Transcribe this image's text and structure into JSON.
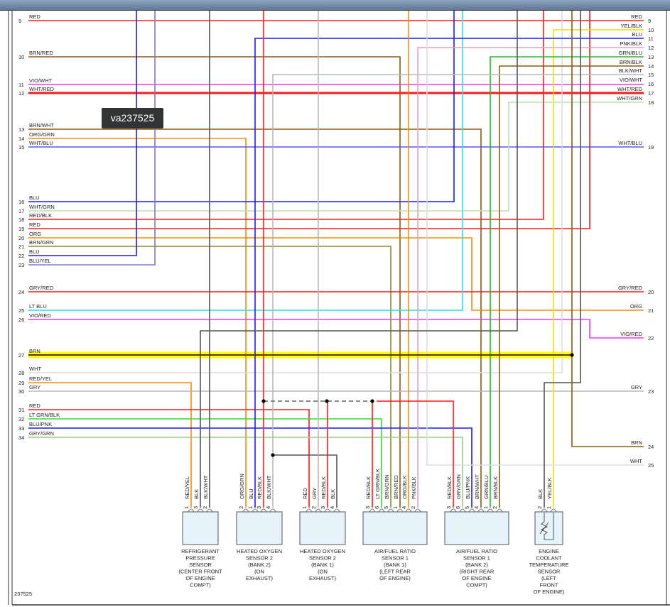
{
  "diagram_id": "237525",
  "tooltip": "va237525",
  "colors": {
    "RED": "#ff1a1a",
    "BLU": "#1a1aff",
    "BRN": "#8b5a10",
    "GRY": "#b8b8b8",
    "BLK": "#555555",
    "WHT": "#dddddd",
    "ORG": "#ff8a00",
    "VIO": "#ff33ff",
    "YEL": "#f0e000",
    "PNK": "#f0a0b0",
    "GRN": "#22bb22",
    "LTBLU": "#22e0ee",
    "LTGRN": "#33dd33",
    "GRYGRN": "#99cc88",
    "WHTGRN": "#bfe0b0",
    "WHTBLU": "#5555ff",
    "BLUYEL": "#7a7ad0",
    "BRNGRN": "#8a8a30",
    "highlight": "#ffff00"
  },
  "left_pins": [
    {
      "num": "9",
      "label": "RED"
    },
    {
      "num": "10",
      "label": "BRN/RED"
    },
    {
      "num": "11",
      "label": "VIO/WHT"
    },
    {
      "num": "12",
      "label": "WHT/RED"
    },
    {
      "num": "13",
      "label": "BRN/WHT"
    },
    {
      "num": "14",
      "label": "ORG/GRN"
    },
    {
      "num": "15",
      "label": "WHT/BLU"
    },
    {
      "num": "16",
      "label": "BLU"
    },
    {
      "num": "17",
      "label": "WHT/GRN"
    },
    {
      "num": "18",
      "label": "RED/BLK"
    },
    {
      "num": "19",
      "label": "RED"
    },
    {
      "num": "20",
      "label": "ORG"
    },
    {
      "num": "21",
      "label": "BRN/GRN"
    },
    {
      "num": "22",
      "label": "BLU"
    },
    {
      "num": "23",
      "label": "BLU/YEL"
    },
    {
      "num": "24",
      "label": "GRY/RED"
    },
    {
      "num": "25",
      "label": "LT BLU"
    },
    {
      "num": "26",
      "label": "VIO/RED"
    },
    {
      "num": "27",
      "label": "BRN"
    },
    {
      "num": "28",
      "label": "WHT"
    },
    {
      "num": "29",
      "label": "RED/YEL"
    },
    {
      "num": "30",
      "label": "GRY"
    },
    {
      "num": "31",
      "label": "RED"
    },
    {
      "num": "32",
      "label": "LT GRN/BLK"
    },
    {
      "num": "33",
      "label": "BLU/PNK"
    },
    {
      "num": "34",
      "label": "GRY/GRN"
    }
  ],
  "right_pins": [
    {
      "num": "9",
      "label": "RED"
    },
    {
      "num": "10",
      "label": "YEL/BLK"
    },
    {
      "num": "11",
      "label": "BLU"
    },
    {
      "num": "12",
      "label": "PNK/BLK"
    },
    {
      "num": "13",
      "label": "GRN/BLU"
    },
    {
      "num": "14",
      "label": "BRN/BLK"
    },
    {
      "num": "15",
      "label": "BLK/WHT"
    },
    {
      "num": "16",
      "label": "VIO/WHT"
    },
    {
      "num": "17",
      "label": "WHT/RED"
    },
    {
      "num": "18",
      "label": "WHT/GRN"
    },
    {
      "num": "19",
      "label": "WHT/BLU"
    },
    {
      "num": "20",
      "label": "GRY/RED"
    },
    {
      "num": "21",
      "label": "ORG"
    },
    {
      "num": "22",
      "label": "VIO/RED"
    },
    {
      "num": "23",
      "label": "GRY"
    },
    {
      "num": "24",
      "label": "BRN"
    },
    {
      "num": "25",
      "label": "WHT"
    }
  ],
  "components": [
    {
      "name": [
        "REFRIGERANT",
        "PRESSURE",
        "SENSOR",
        "(CENTER FRONT",
        "OF ENGINE",
        "COMPT)"
      ],
      "pins": [
        {
          "num": "1",
          "label": "RED/YEL"
        },
        {
          "num": "3",
          "label": "BLK"
        },
        {
          "num": "2",
          "label": "BLK/WHT"
        }
      ]
    },
    {
      "name": [
        "HEATED OXYGEN",
        "SENSOR 2",
        "(BANK 2)",
        "(ON",
        "EXHAUST)"
      ],
      "pins": [
        {
          "num": "2",
          "label": "ORG/GRN"
        },
        {
          "num": "1",
          "label": "BLU"
        },
        {
          "num": "3",
          "label": "RED/BLK"
        },
        {
          "num": "4",
          "label": "BLK/WHT"
        }
      ]
    },
    {
      "name": [
        "HEATED OXYGEN",
        "SENSOR 2",
        "(BANK 1)",
        "(ON",
        "EXHAUST)"
      ],
      "pins": [
        {
          "num": "1",
          "label": "RED"
        },
        {
          "num": "2",
          "label": "GRY"
        },
        {
          "num": "3",
          "label": "RED/BLK"
        },
        {
          "num": "4",
          "label": "BLK"
        }
      ]
    },
    {
      "name": [
        "AIR/FUEL RATIO",
        "SENSOR 1",
        "(BANK 1)",
        "(LEFT REAR",
        "OF ENGINE)"
      ],
      "pins": [
        {
          "num": "3",
          "label": "RED/BLK"
        },
        {
          "num": "6",
          "label": "LT GRN/BLK"
        },
        {
          "num": "5",
          "label": "BRN/GRN"
        },
        {
          "num": "1",
          "label": "BRN/RED"
        },
        {
          "num": "4",
          "label": "ORG/BLK"
        },
        {
          "num": "2",
          "label": "PNK/BLK"
        }
      ]
    },
    {
      "name": [
        "AIR/FUEL RATIO",
        "SENSOR 1",
        "(BANK 2)",
        "(RIGHT REAR",
        "OF ENGINE",
        "COMPT)"
      ],
      "pins": [
        {
          "num": "3",
          "label": "RED/BLK"
        },
        {
          "num": "6",
          "label": "GRY/GRN"
        },
        {
          "num": "5",
          "label": "BLU/PNK"
        },
        {
          "num": "4",
          "label": "BRN/WHT"
        },
        {
          "num": "1",
          "label": "GRN/BLU"
        },
        {
          "num": "2",
          "label": "BRN/BLK"
        }
      ]
    },
    {
      "name": [
        "ENGINE",
        "COOLANT",
        "TEMPERATURE",
        "SENSOR",
        "(LEFT",
        "FRONT",
        "OF ENGINE)"
      ],
      "pins": [
        {
          "num": "2",
          "label": "BLK"
        },
        {
          "num": "1",
          "label": "YEL/BLK"
        }
      ]
    }
  ]
}
